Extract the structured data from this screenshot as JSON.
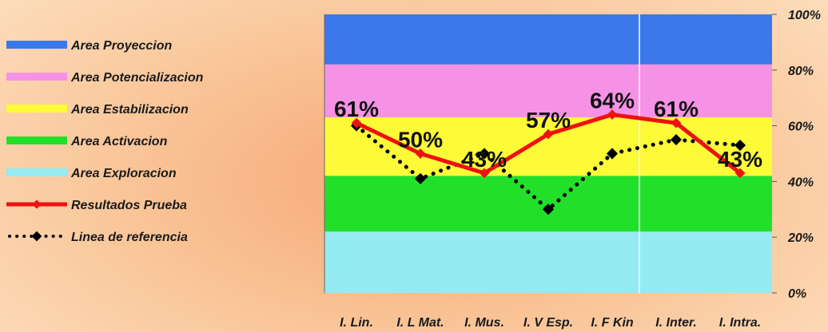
{
  "chart_data": {
    "type": "line",
    "title": "",
    "xlabel": "",
    "ylabel": "",
    "categories": [
      "I. Lin.",
      "I. L Mat.",
      "I. Mus.",
      "I. V Esp.",
      "I. F Kin",
      "I. Inter.",
      "I. Intra."
    ],
    "ylim": [
      0,
      100
    ],
    "y_ticks": [
      {
        "value": 0,
        "label": "0%"
      },
      {
        "value": 20,
        "label": "20%"
      },
      {
        "value": 40,
        "label": "40%"
      },
      {
        "value": 60,
        "label": "60%"
      },
      {
        "value": 80,
        "label": "80%"
      },
      {
        "value": 100,
        "label": "100%"
      }
    ],
    "y_axis_side": "right",
    "legend_position": "left",
    "bands": [
      {
        "name": "Area Proyeccion",
        "from": 82,
        "to": 100,
        "color": "#3b78ec"
      },
      {
        "name": "Area Potencializacion",
        "from": 63,
        "to": 82,
        "color": "#f692e6"
      },
      {
        "name": "Area Estabilizacion",
        "from": 42,
        "to": 63,
        "color": "#fdfa38"
      },
      {
        "name": "Area Activacion",
        "from": 22,
        "to": 42,
        "color": "#22e02a"
      },
      {
        "name": "Area Exploracion",
        "from": 0,
        "to": 22,
        "color": "#94ebf2"
      }
    ],
    "series": [
      {
        "name": "Resultados Prueba",
        "values": [
          61,
          50,
          43,
          57,
          64,
          61,
          43
        ],
        "labels": [
          "61%",
          "50%",
          "43%",
          "57%",
          "64%",
          "61%",
          "43%"
        ],
        "color": "#ee1111",
        "style": "solid"
      },
      {
        "name": "Linea de referencia",
        "values": [
          60,
          41,
          50,
          30,
          50,
          55,
          53
        ],
        "color": "#000000",
        "style": "dotted"
      }
    ]
  }
}
